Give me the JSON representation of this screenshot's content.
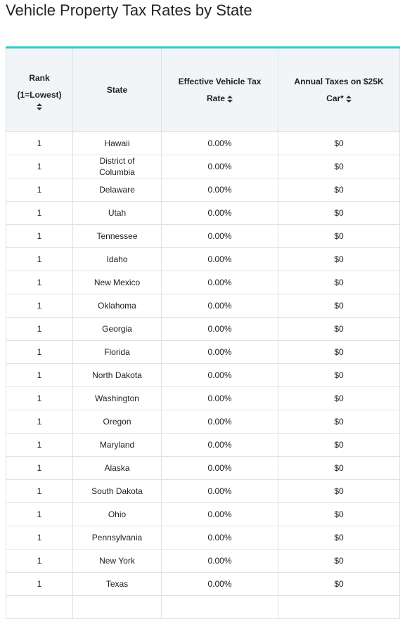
{
  "title": "Vehicle Property Tax Rates by State",
  "table": {
    "headers": [
      "Rank (1=Lowest)",
      "State",
      "Effective Vehicle Tax Rate",
      "Annual Taxes on $25K Car*"
    ],
    "rows": [
      [
        "1",
        "Hawaii",
        "0.00%",
        "$0"
      ],
      [
        "1",
        "District of Columbia",
        "0.00%",
        "$0"
      ],
      [
        "1",
        "Delaware",
        "0.00%",
        "$0"
      ],
      [
        "1",
        "Utah",
        "0.00%",
        "$0"
      ],
      [
        "1",
        "Tennessee",
        "0.00%",
        "$0"
      ],
      [
        "1",
        "Idaho",
        "0.00%",
        "$0"
      ],
      [
        "1",
        "New Mexico",
        "0.00%",
        "$0"
      ],
      [
        "1",
        "Oklahoma",
        "0.00%",
        "$0"
      ],
      [
        "1",
        "Georgia",
        "0.00%",
        "$0"
      ],
      [
        "1",
        "Florida",
        "0.00%",
        "$0"
      ],
      [
        "1",
        "North Dakota",
        "0.00%",
        "$0"
      ],
      [
        "1",
        "Washington",
        "0.00%",
        "$0"
      ],
      [
        "1",
        "Oregon",
        "0.00%",
        "$0"
      ],
      [
        "1",
        "Maryland",
        "0.00%",
        "$0"
      ],
      [
        "1",
        "Alaska",
        "0.00%",
        "$0"
      ],
      [
        "1",
        "South Dakota",
        "0.00%",
        "$0"
      ],
      [
        "1",
        "Ohio",
        "0.00%",
        "$0"
      ],
      [
        "1",
        "Pennsylvania",
        "0.00%",
        "$0"
      ],
      [
        "1",
        "New York",
        "0.00%",
        "$0"
      ],
      [
        "1",
        "Texas",
        "0.00%",
        "$0"
      ]
    ]
  }
}
